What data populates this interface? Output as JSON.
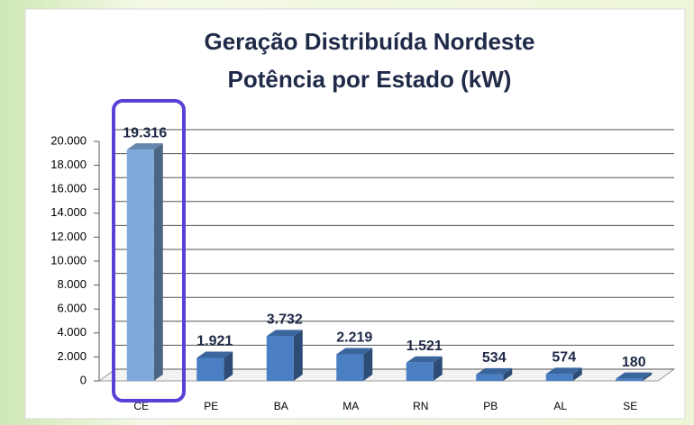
{
  "chart_data": {
    "type": "bar",
    "title": "Geração Distribuída Nordeste",
    "subtitle": "Potência por Estado (kW)",
    "categories": [
      "CE",
      "PE",
      "BA",
      "MA",
      "RN",
      "PB",
      "AL",
      "SE"
    ],
    "values": [
      19316,
      1921,
      3732,
      2219,
      1521,
      534,
      574,
      180
    ],
    "value_labels": [
      "19.316",
      "1.921",
      "3.732",
      "2.219",
      "1.521",
      "534",
      "574",
      "180"
    ],
    "color": "#4a7fc4",
    "colors": [
      "#7ea9d9",
      "#4a7fc4",
      "#4a7fc4",
      "#4a7fc4",
      "#4a7fc4",
      "#4a7fc4",
      "#4a7fc4",
      "#4a7fc4"
    ],
    "ylim": [
      0,
      20000
    ],
    "yticks": [
      {
        "value": 0,
        "label": "0"
      },
      {
        "value": 2000,
        "label": "2.000"
      },
      {
        "value": 4000,
        "label": "4.000"
      },
      {
        "value": 6000,
        "label": "6.000"
      },
      {
        "value": 8000,
        "label": "8.000"
      },
      {
        "value": 10000,
        "label": "10.000"
      },
      {
        "value": 12000,
        "label": "12.000"
      },
      {
        "value": 14000,
        "label": "14.000"
      },
      {
        "value": 16000,
        "label": "16.000"
      },
      {
        "value": 18000,
        "label": "18.000"
      },
      {
        "value": 20000,
        "label": "20.000"
      }
    ],
    "grid": true
  }
}
